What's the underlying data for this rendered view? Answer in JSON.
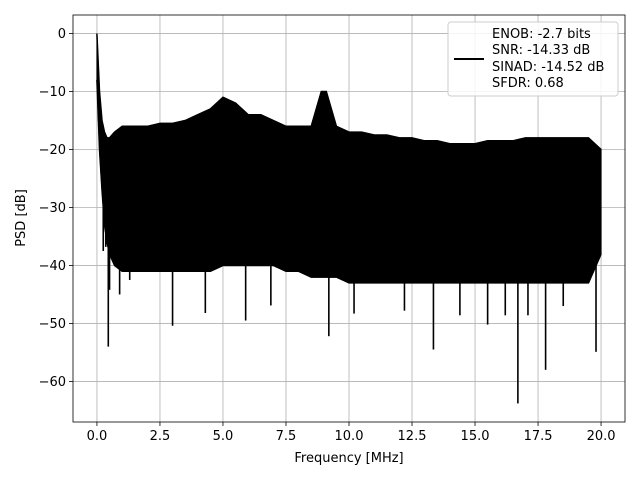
{
  "chart_data": {
    "type": "line",
    "xlabel": "Frequency [MHz]",
    "ylabel": "PSD [dB]",
    "xlim": [
      -0.95,
      20.95
    ],
    "ylim": [
      -67.0,
      3.2
    ],
    "xticks": [
      0.0,
      2.5,
      5.0,
      7.5,
      10.0,
      12.5,
      15.0,
      17.5,
      20.0
    ],
    "xtick_labels": [
      "0.0",
      "2.5",
      "5.0",
      "7.5",
      "10.0",
      "12.5",
      "15.0",
      "17.5",
      "20.0"
    ],
    "yticks": [
      0,
      -10,
      -20,
      -30,
      -40,
      -50,
      -60
    ],
    "ytick_labels": [
      "0",
      "−10",
      "−20",
      "−30",
      "−40",
      "−50",
      "−60"
    ],
    "grid": true,
    "legend": {
      "placement": "top-right",
      "entries": [
        "ENOB: -2.7 bits",
        "SNR: -14.33 dB",
        "SINAD: -14.52 dB",
        "SFDR: 0.68"
      ]
    },
    "series": [
      {
        "color": "#000000",
        "envelope": {
          "x": [
            0.0,
            0.05,
            0.1,
            0.2,
            0.3,
            0.4,
            0.5,
            0.7,
            1.0,
            1.5,
            2.0,
            2.5,
            3.0,
            3.5,
            4.0,
            4.5,
            5.0,
            5.5,
            6.0,
            6.5,
            7.0,
            7.5,
            8.0,
            8.5,
            8.9,
            9.1,
            9.5,
            10.0,
            10.5,
            11.0,
            11.5,
            12.0,
            12.5,
            13.0,
            13.5,
            14.0,
            14.5,
            15.0,
            15.5,
            16.0,
            16.5,
            17.0,
            17.5,
            18.0,
            18.5,
            19.0,
            19.5,
            20.0
          ],
          "upper": [
            0,
            -5,
            -10,
            -15,
            -17,
            -18,
            -18,
            -17,
            -16,
            -16,
            -16,
            -15.5,
            -15.5,
            -15,
            -14,
            -13,
            -11,
            -12,
            -14,
            -14,
            -15,
            -16,
            -16,
            -16,
            -10,
            -10,
            -16,
            -17,
            -17,
            -17.5,
            -17.5,
            -18,
            -18,
            -18.5,
            -18.5,
            -19,
            -19,
            -19,
            -18.5,
            -18.5,
            -18.5,
            -18,
            -18,
            -18,
            -18,
            -18,
            -18,
            -20
          ],
          "lower": [
            -8,
            -14,
            -20,
            -27,
            -33,
            -36,
            -38,
            -40,
            -41,
            -41,
            -41,
            -41,
            -41,
            -41,
            -41,
            -41,
            -40,
            -40,
            -40,
            -40,
            -40,
            -41,
            -41,
            -42,
            -42,
            -42,
            -42,
            -43,
            -43,
            -43,
            -43,
            -43,
            -43,
            -43,
            -43,
            -43,
            -43,
            -43,
            -43,
            -43,
            -43,
            -43,
            -43,
            -43,
            -43,
            -43,
            -43,
            -38
          ]
        },
        "dips": [
          {
            "x": 0.25,
            "y": -37.5
          },
          {
            "x": 0.35,
            "y": -36.8
          },
          {
            "x": 0.45,
            "y": -54.0
          },
          {
            "x": 0.5,
            "y": -44.2
          },
          {
            "x": 0.9,
            "y": -45.0
          },
          {
            "x": 1.3,
            "y": -42.5
          },
          {
            "x": 3.0,
            "y": -50.4
          },
          {
            "x": 4.3,
            "y": -48.2
          },
          {
            "x": 5.9,
            "y": -49.5
          },
          {
            "x": 6.9,
            "y": -46.9
          },
          {
            "x": 9.2,
            "y": -52.2
          },
          {
            "x": 10.2,
            "y": -48.3
          },
          {
            "x": 12.2,
            "y": -47.8
          },
          {
            "x": 13.35,
            "y": -54.5
          },
          {
            "x": 14.4,
            "y": -48.6
          },
          {
            "x": 15.5,
            "y": -50.2
          },
          {
            "x": 16.2,
            "y": -48.6
          },
          {
            "x": 16.7,
            "y": -63.8
          },
          {
            "x": 17.1,
            "y": -48.6
          },
          {
            "x": 17.8,
            "y": -58.0
          },
          {
            "x": 18.5,
            "y": -47.0
          },
          {
            "x": 19.8,
            "y": -54.9
          }
        ]
      }
    ]
  }
}
